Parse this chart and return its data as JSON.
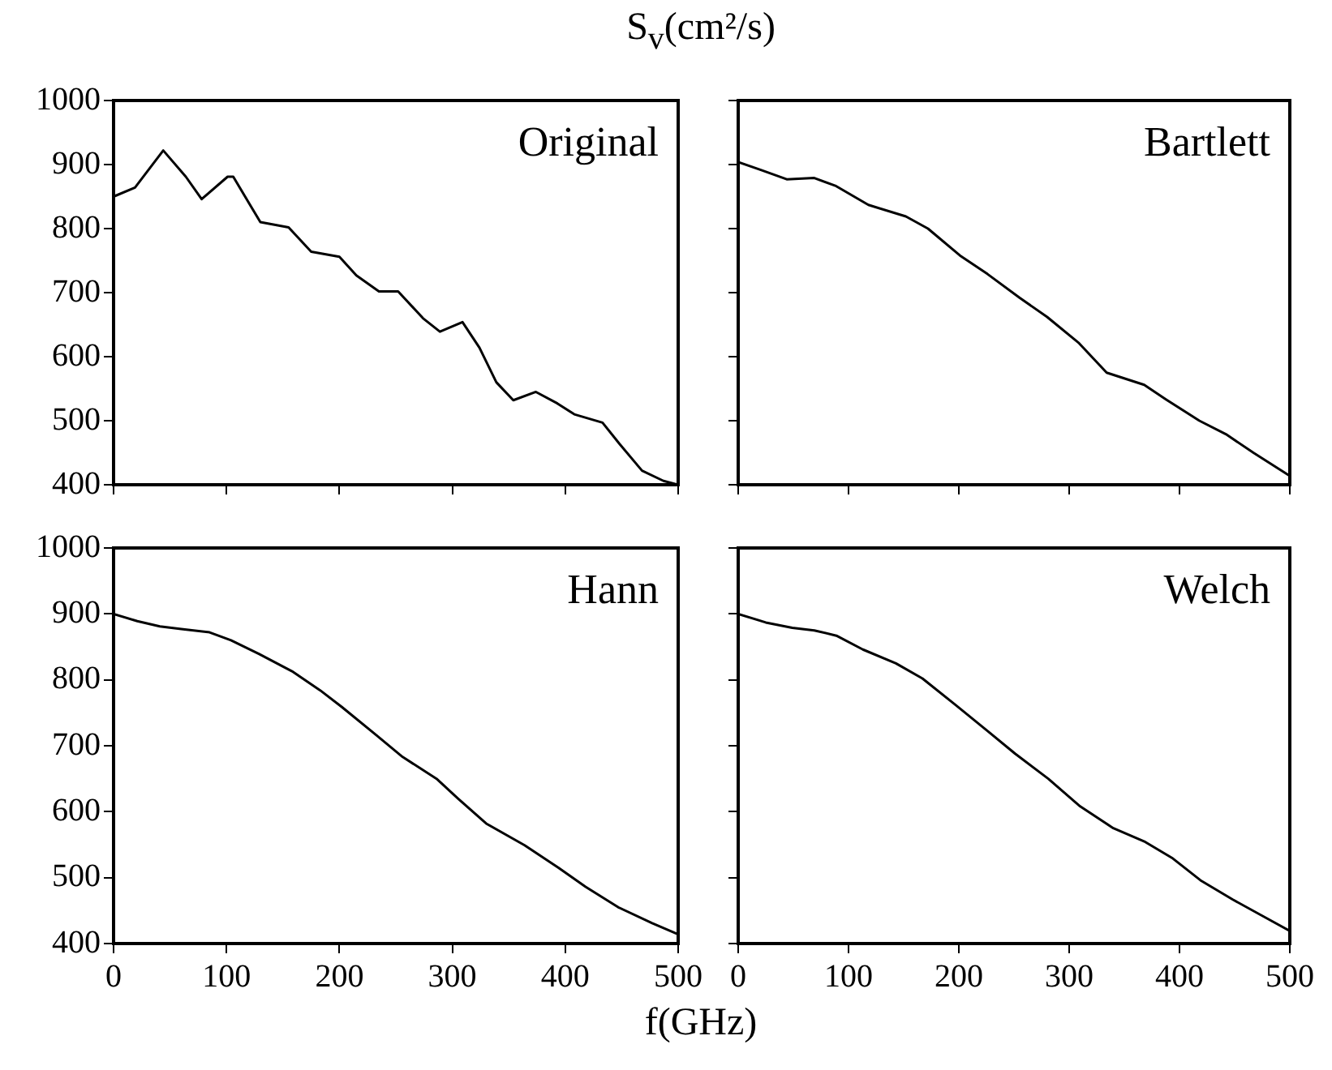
{
  "chart_data": [
    {
      "type": "line",
      "title": "Original",
      "ylabel": "S$_{v}$(cm²/s)",
      "xlim": [
        0,
        500
      ],
      "ylim": [
        400,
        1000
      ],
      "xticks": [
        0,
        100,
        200,
        300,
        400,
        500
      ],
      "yticks": [
        400,
        500,
        600,
        700,
        800,
        900,
        1000
      ],
      "tick_labels": "y",
      "marker": "none",
      "series": [
        {
          "color": "#000000",
          "x": [
            0,
            19,
            44,
            64,
            78,
            101,
            106,
            130,
            155,
            175,
            200,
            215,
            235,
            252,
            274,
            289,
            309,
            324,
            339,
            354,
            374,
            393,
            408,
            433,
            448,
            468,
            487,
            500
          ],
          "values": [
            850,
            864,
            922,
            881,
            846,
            881,
            881,
            810,
            802,
            764,
            756,
            727,
            702,
            702,
            660,
            639,
            654,
            614,
            560,
            532,
            545,
            527,
            510,
            497,
            464,
            422,
            406,
            400
          ]
        }
      ]
    },
    {
      "type": "line",
      "title": "Bartlett",
      "xlim": [
        0,
        500
      ],
      "ylim": [
        400,
        1000
      ],
      "xticks": [
        0,
        100,
        200,
        300,
        400,
        500
      ],
      "yticks": [
        400,
        500,
        600,
        700,
        800,
        900,
        1000
      ],
      "tick_labels": false,
      "marker": "none",
      "series": [
        {
          "color": "#000000",
          "x": [
            0,
            20,
            44,
            69,
            88,
            118,
            152,
            172,
            201,
            226,
            255,
            280,
            309,
            334,
            368,
            388,
            418,
            442,
            467,
            499
          ],
          "values": [
            904,
            892,
            877,
            879,
            867,
            837,
            819,
            800,
            758,
            729,
            692,
            662,
            621,
            575,
            556,
            533,
            500,
            479,
            450,
            415
          ]
        }
      ]
    },
    {
      "type": "line",
      "title": "Hann",
      "xlabel": "f(GHz)",
      "xlim": [
        0,
        500
      ],
      "ylim": [
        400,
        1000
      ],
      "xticks": [
        0,
        100,
        200,
        300,
        400,
        500
      ],
      "yticks": [
        400,
        500,
        600,
        700,
        800,
        900,
        1000
      ],
      "marker": "none",
      "series": [
        {
          "color": "#000000",
          "x": [
            0,
            21,
            41,
            60,
            85,
            104,
            129,
            158,
            183,
            202,
            232,
            256,
            286,
            305,
            330,
            364,
            394,
            418,
            447,
            477,
            500
          ],
          "values": [
            900,
            889,
            881,
            877,
            872,
            860,
            839,
            813,
            784,
            759,
            717,
            683,
            650,
            620,
            582,
            549,
            515,
            486,
            455,
            431,
            414
          ]
        }
      ]
    },
    {
      "type": "line",
      "title": "Welch",
      "xlim": [
        0,
        500
      ],
      "ylim": [
        400,
        1000
      ],
      "xticks": [
        0,
        100,
        200,
        300,
        400,
        500
      ],
      "yticks": [
        400,
        500,
        600,
        700,
        800,
        900,
        1000
      ],
      "tick_labels": "x",
      "marker": "none",
      "series": [
        {
          "color": "#000000",
          "x": [
            0,
            25,
            49,
            69,
            89,
            113,
            143,
            167,
            197,
            227,
            251,
            281,
            310,
            340,
            369,
            394,
            419,
            448,
            473,
            500
          ],
          "values": [
            900,
            887,
            879,
            875,
            867,
            846,
            825,
            802,
            762,
            721,
            688,
            650,
            608,
            575,
            554,
            529,
            496,
            467,
            444,
            419
          ]
        }
      ]
    }
  ]
}
